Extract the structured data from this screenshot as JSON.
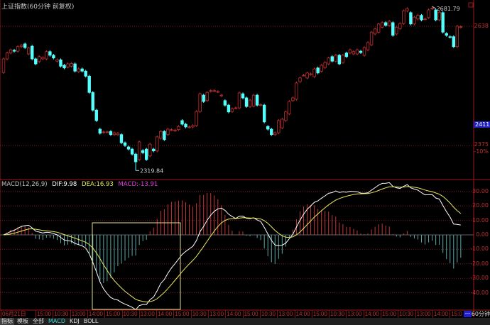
{
  "title": "上证指数(60分钟 前复权)",
  "colors": {
    "up": "#c03030",
    "down": "#54ffff",
    "dif": "#ffffff",
    "dea": "#e8e860",
    "macd_text": "#e040e0",
    "grid": "#801818"
  },
  "price_axis": {
    "labels": [
      "2638",
      "2375",
      "-10%"
    ],
    "current": "2411.8"
  },
  "markers": {
    "high": "2681.79",
    "low": "2319.84"
  },
  "macd_legend": {
    "name": "MACD(12,26,9)",
    "dif": "DIF:9.98",
    "dea": "DEA:16.93",
    "macd": "MACD:-13.91"
  },
  "macd_axis": [
    "30.00",
    "20.00",
    "10.00",
    "0.00",
    "-10.00",
    "-20.00",
    "-30.00",
    "-40.00"
  ],
  "time_axis": [
    "06月21日",
    "15:00",
    "10:30",
    "13:00",
    "14:00",
    "15:00",
    "10:30",
    "13:00",
    "14:00",
    "15:00",
    "10:30",
    "13:00",
    "14:00",
    "15:00",
    "10:30",
    "13:00",
    "14:00",
    "15:00",
    "10:30",
    "13:00",
    "14:00",
    "15:00",
    "10:30",
    "13:00",
    "14:00",
    "15:0"
  ],
  "period": {
    "box": "---",
    "label": "60分钟"
  },
  "tabs": [
    "指标",
    "模板",
    "全部",
    "MACD",
    "KDJ",
    "BOLL"
  ],
  "chart_data": {
    "type": "candlestick",
    "title": "上证指数(60分钟 前复权)",
    "y_ticks": [
      2638,
      2375
    ],
    "high": 2681.79,
    "low": 2319.84,
    "candles_open_close": [
      [
        2536,
        2566
      ],
      [
        2566,
        2579
      ],
      [
        2579,
        2586
      ],
      [
        2585,
        2583
      ],
      [
        2583,
        2593
      ],
      [
        2593,
        2596
      ],
      [
        2599,
        2591
      ],
      [
        2577,
        2590
      ],
      [
        2594,
        2566
      ],
      [
        2566,
        2555
      ],
      [
        2560,
        2571
      ],
      [
        2566,
        2569
      ],
      [
        2566,
        2582
      ],
      [
        2582,
        2574
      ],
      [
        2574,
        2568
      ],
      [
        2561,
        2564
      ],
      [
        2564,
        2550
      ],
      [
        2552,
        2546
      ],
      [
        2548,
        2555
      ],
      [
        2550,
        2556
      ],
      [
        2555,
        2539
      ],
      [
        2538,
        2544
      ],
      [
        2544,
        2539
      ],
      [
        2539,
        2528
      ],
      [
        2528,
        2492
      ],
      [
        2492,
        2453
      ],
      [
        2453,
        2430
      ],
      [
        2411,
        2402
      ],
      [
        2404,
        2405
      ],
      [
        2405,
        2405
      ],
      [
        2406,
        2399
      ],
      [
        2399,
        2403
      ],
      [
        2399,
        2402
      ],
      [
        2399,
        2381
      ],
      [
        2381,
        2375
      ],
      [
        2372,
        2367
      ],
      [
        2367,
        2356
      ],
      [
        2356,
        2339
      ],
      [
        2344,
        2383
      ],
      [
        2364,
        2359
      ],
      [
        2367,
        2344
      ],
      [
        2352,
        2378
      ],
      [
        2367,
        2363
      ],
      [
        2363,
        2394
      ],
      [
        2391,
        2406
      ],
      [
        2406,
        2388
      ],
      [
        2399,
        2411
      ],
      [
        2410,
        2410
      ],
      [
        2408,
        2409
      ],
      [
        2410,
        2417
      ],
      [
        2430,
        2422
      ],
      [
        2422,
        2416
      ],
      [
        2416,
        2416
      ],
      [
        2416,
        2419
      ],
      [
        2419,
        2450
      ],
      [
        2450,
        2489
      ],
      [
        2486,
        2472
      ],
      [
        2474,
        2492
      ],
      [
        2495,
        2496
      ],
      [
        2496,
        2496
      ],
      [
        2494,
        2494
      ],
      [
        2485,
        2486
      ],
      [
        2474,
        2464
      ],
      [
        2464,
        2449
      ],
      [
        2450,
        2456
      ],
      [
        2458,
        2458
      ],
      [
        2458,
        2491
      ],
      [
        2489,
        2480
      ],
      [
        2480,
        2461
      ],
      [
        2461,
        2475
      ],
      [
        2462,
        2486
      ],
      [
        2486,
        2464
      ],
      [
        2464,
        2465
      ],
      [
        2464,
        2427
      ],
      [
        2417,
        2411
      ],
      [
        2411,
        2399
      ],
      [
        2399,
        2403
      ],
      [
        2403,
        2430
      ],
      [
        2414,
        2433
      ],
      [
        2430,
        2449
      ],
      [
        2445,
        2472
      ],
      [
        2474,
        2480
      ],
      [
        2477,
        2513
      ],
      [
        2516,
        2524
      ],
      [
        2530,
        2530
      ],
      [
        2524,
        2535
      ],
      [
        2532,
        2533
      ],
      [
        2527,
        2544
      ],
      [
        2546,
        2535
      ],
      [
        2539,
        2552
      ],
      [
        2547,
        2558
      ],
      [
        2555,
        2568
      ],
      [
        2571,
        2561
      ],
      [
        2561,
        2574
      ],
      [
        2574,
        2555
      ],
      [
        2558,
        2574
      ],
      [
        2579,
        2571
      ],
      [
        2579,
        2586
      ],
      [
        2577,
        2582
      ],
      [
        2577,
        2586
      ],
      [
        2583,
        2580
      ],
      [
        2574,
        2591
      ],
      [
        2586,
        2602
      ],
      [
        2597,
        2625
      ],
      [
        2621,
        2632
      ],
      [
        2625,
        2643
      ],
      [
        2636,
        2646
      ],
      [
        2646,
        2640
      ],
      [
        2640,
        2649
      ],
      [
        2646,
        2618
      ],
      [
        2621,
        2636
      ],
      [
        2633,
        2644
      ],
      [
        2644,
        2672
      ],
      [
        2672,
        2677
      ],
      [
        2668,
        2643
      ],
      [
        2643,
        2658
      ],
      [
        2654,
        2662
      ],
      [
        2662,
        2652
      ],
      [
        2654,
        2654
      ],
      [
        2657,
        2674
      ],
      [
        2677,
        2678
      ],
      [
        2674,
        2652
      ],
      [
        2652,
        2669
      ],
      [
        2668,
        2625
      ],
      [
        2622,
        2618
      ],
      [
        2615,
        2614
      ],
      [
        2615,
        2593
      ],
      [
        2593,
        2638
      ],
      [
        2636,
        2637
      ]
    ],
    "indicator": {
      "type": "MACD",
      "params": [
        12,
        26,
        9
      ],
      "ylim": [
        -45,
        35
      ],
      "dif_last": 9.98,
      "dea_last": 16.93,
      "macd_last": -13.91
    }
  }
}
